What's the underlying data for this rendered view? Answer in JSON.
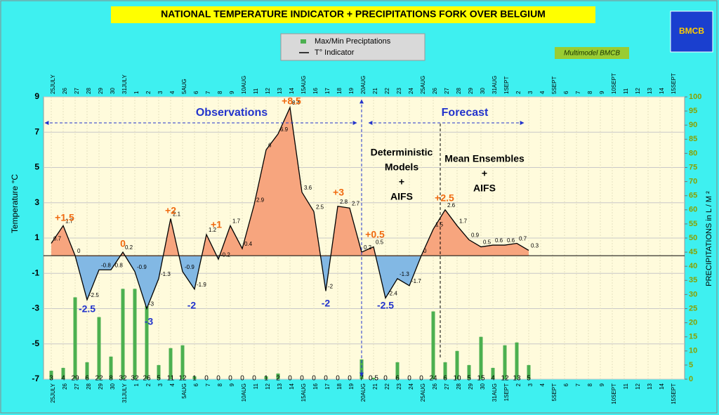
{
  "chart_data": {
    "type": "line",
    "title": "NATIONAL TEMPERATURE INDICATOR + PRECIPITATIONS FORK OVER  BELGIUM",
    "logo": "BMCB",
    "badge": "Multimodel BMCB",
    "ylabel": "Temperature  °C",
    "y2label": "PRECIPITATIONS in L / M ²",
    "ylim": [
      -7,
      9
    ],
    "yticks": [
      -7,
      -5,
      -3,
      -1,
      1,
      3,
      5,
      7,
      9
    ],
    "y2lim": [
      0,
      100
    ],
    "y2ticks": [
      0,
      5,
      10,
      15,
      20,
      25,
      30,
      35,
      40,
      45,
      50,
      55,
      60,
      65,
      70,
      75,
      80,
      85,
      90,
      95,
      100
    ],
    "grid": true,
    "categories": [
      "25JULY",
      "26",
      "27",
      "28",
      "29",
      "30",
      "31JULY",
      "1",
      "2",
      "3",
      "4",
      "5AUG",
      "6",
      "7",
      "8",
      "9",
      "10AUG",
      "11",
      "12",
      "13",
      "14",
      "15AUG",
      "16",
      "17",
      "18",
      "19",
      "20AUG",
      "21",
      "22",
      "23",
      "24",
      "25AUG",
      "26",
      "27",
      "28",
      "29",
      "30",
      "31AUG",
      "1SEPT",
      "2",
      "3",
      "4",
      "5SEPT",
      "6",
      "7",
      "8",
      "9",
      "10SEPT",
      "11",
      "12",
      "13",
      "14",
      "15SEPT"
    ],
    "series": [
      {
        "name": "Max/Min Preciptations",
        "type": "bar",
        "axis": "y2",
        "color": "#4cb050",
        "values": [
          3,
          4,
          29,
          6,
          22,
          8,
          32,
          32,
          26,
          5,
          11,
          12,
          1,
          0,
          0,
          0,
          0,
          0,
          1,
          2,
          0,
          0,
          0,
          0,
          0,
          0,
          7,
          0.5,
          0,
          6,
          0,
          0,
          24,
          6,
          10,
          5,
          15,
          4,
          12,
          13,
          5,
          null,
          null,
          null,
          null,
          null,
          null,
          null,
          null,
          null,
          null,
          null,
          null
        ]
      },
      {
        "name": "T° Indicator",
        "type": "line",
        "color": "#000000",
        "values": [
          0.7,
          1.7,
          0,
          -2.5,
          -0.8,
          -0.8,
          0.2,
          -0.9,
          -3,
          -1.3,
          2.1,
          -0.9,
          -1.9,
          1.2,
          -0.2,
          1.7,
          0.4,
          2.9,
          6,
          6.9,
          8.4,
          3.6,
          2.5,
          -2,
          2.8,
          2.7,
          0.2,
          0.5,
          -2.4,
          -1.3,
          -1.7,
          0,
          1.5,
          2.6,
          1.7,
          0.9,
          0.5,
          0.6,
          0.6,
          0.7,
          0.3,
          null,
          null,
          null,
          null,
          null,
          null,
          null,
          null,
          null,
          null,
          null,
          null
        ]
      }
    ],
    "annotations": [
      "+1.5",
      "0",
      "+2",
      "+1",
      "+8.5",
      "+3",
      "+0.5",
      "+2.5",
      "-2.5",
      "-3",
      "-2",
      "-2",
      "-2.5"
    ],
    "periods": [
      "Observations",
      "Forecast"
    ],
    "notes": [
      [
        "Deterministic",
        "Models",
        "+",
        "AIFS"
      ],
      [
        "Mean Ensembles",
        "+",
        "AIFS"
      ]
    ]
  }
}
